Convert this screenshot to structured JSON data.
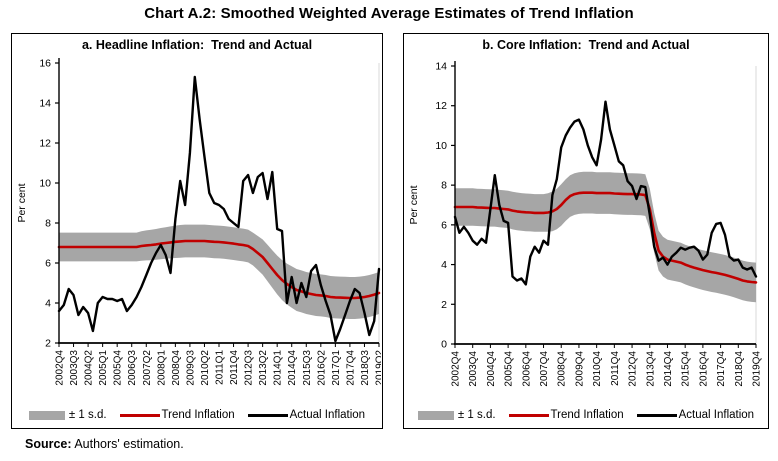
{
  "title": "Chart A.2: Smoothed Weighted Average Estimates of Trend Inflation",
  "source": {
    "label": "Source:",
    "text": " Authors' estimation."
  },
  "legend": {
    "band": "± 1 s.d.",
    "trend": "Trend Inflation",
    "actual": "Actual Inflation"
  },
  "colors": {
    "band": "#a6a6a6",
    "trend": "#c00000",
    "actual": "#000000",
    "plot_right_spine": "#d9d9d9",
    "axis": "#000000"
  },
  "chart_data": [
    {
      "type": "line",
      "title": "a. Headline Inflation:  Trend and Actual",
      "ylabel": "Per cent",
      "y_min": 2,
      "y_max": 16,
      "y_step": 2,
      "y_tick_labels": [
        "2",
        "4",
        "6",
        "8",
        "10",
        "12",
        "14",
        "16"
      ],
      "label_every": 3,
      "x_tick_labels": [
        "2002Q4",
        "2003Q3",
        "2004Q2",
        "2005Q1",
        "2005Q4",
        "2006Q3",
        "2007Q2",
        "2008Q1",
        "2008Q4",
        "2009Q3",
        "2010Q2",
        "2011Q1",
        "2011Q4",
        "2012Q3",
        "2013Q2",
        "2014Q1",
        "2014Q4",
        "2015Q3",
        "2016Q2",
        "2017Q1",
        "2017Q4",
        "2018Q3",
        "2019Q2"
      ],
      "series": [
        {
          "name": "± 1 s.d.",
          "kind": "band",
          "halfwidth": [
            0.72,
            0.72,
            0.72,
            0.72,
            0.72,
            0.72,
            0.72,
            0.72,
            0.72,
            0.72,
            0.72,
            0.72,
            0.72,
            0.72,
            0.72,
            0.72,
            0.72,
            0.74,
            0.75,
            0.76,
            0.77,
            0.78,
            0.79,
            0.8,
            0.81,
            0.82,
            0.82,
            0.82,
            0.82,
            0.82,
            0.82,
            0.82,
            0.82,
            0.82,
            0.82,
            0.82,
            0.82,
            0.82,
            0.82,
            0.82,
            0.82,
            0.85,
            0.88,
            0.91,
            0.94,
            0.97,
            1.0,
            1.02,
            1.04,
            1.05,
            1.05,
            1.05,
            1.05,
            1.05,
            1.05,
            1.05,
            1.05,
            1.05,
            1.05,
            1.05,
            1.05,
            1.05,
            1.05,
            1.05,
            1.05,
            1.05,
            1.05
          ]
        },
        {
          "name": "Trend Inflation",
          "kind": "line",
          "values": [
            6.8,
            6.8,
            6.8,
            6.8,
            6.8,
            6.8,
            6.8,
            6.8,
            6.8,
            6.8,
            6.8,
            6.8,
            6.8,
            6.8,
            6.8,
            6.8,
            6.8,
            6.85,
            6.88,
            6.9,
            6.93,
            6.97,
            7.0,
            7.03,
            7.06,
            7.08,
            7.1,
            7.1,
            7.1,
            7.1,
            7.1,
            7.08,
            7.06,
            7.05,
            7.03,
            7.0,
            6.97,
            6.93,
            6.9,
            6.85,
            6.7,
            6.5,
            6.3,
            6.0,
            5.7,
            5.4,
            5.15,
            4.95,
            4.8,
            4.65,
            4.58,
            4.5,
            4.45,
            4.4,
            4.38,
            4.35,
            4.3,
            4.28,
            4.27,
            4.26,
            4.25,
            4.25,
            4.27,
            4.3,
            4.35,
            4.42,
            4.5
          ]
        },
        {
          "name": "Actual Inflation",
          "kind": "line",
          "values": [
            3.6,
            3.9,
            4.7,
            4.4,
            3.4,
            3.8,
            3.5,
            2.6,
            4.0,
            4.3,
            4.2,
            4.2,
            4.1,
            4.2,
            3.6,
            3.9,
            4.3,
            4.8,
            5.4,
            6.0,
            6.5,
            6.9,
            6.4,
            5.5,
            8.2,
            10.1,
            8.9,
            11.5,
            15.3,
            13.2,
            11.3,
            9.5,
            9.0,
            8.9,
            8.7,
            8.2,
            8.0,
            7.8,
            10.1,
            10.4,
            9.5,
            10.3,
            10.5,
            9.2,
            10.55,
            7.7,
            7.6,
            4.0,
            5.3,
            4.0,
            5.0,
            4.3,
            5.6,
            5.9,
            4.9,
            4.1,
            3.4,
            2.1,
            2.7,
            3.4,
            4.1,
            4.7,
            4.5,
            3.5,
            2.4,
            3.1,
            5.7
          ]
        }
      ]
    },
    {
      "type": "line",
      "title": "b. Core Inflation:  Trend and Actual",
      "ylabel": "Per cent",
      "y_min": 0,
      "y_max": 14,
      "y_step": 2,
      "y_tick_labels": [
        "0",
        "2",
        "4",
        "6",
        "8",
        "10",
        "12",
        "14"
      ],
      "label_every": 4,
      "x_tick_labels": [
        "2002Q4",
        "2003Q4",
        "2004Q4",
        "2005Q4",
        "2006Q4",
        "2007Q4",
        "2008Q4",
        "2009Q4",
        "2010Q4",
        "2011Q4",
        "2012Q4",
        "2013Q4",
        "2014Q4",
        "2015Q4",
        "2016Q4",
        "2017Q4",
        "2018Q4",
        "2019Q4"
      ],
      "series": [
        {
          "name": "± 1 s.d.",
          "kind": "band",
          "halfwidth": [
            0.94,
            0.94,
            0.94,
            0.94,
            0.94,
            0.94,
            0.94,
            0.94,
            0.94,
            0.94,
            0.94,
            0.94,
            0.94,
            0.95,
            0.95,
            0.95,
            0.95,
            0.95,
            0.95,
            0.95,
            0.95,
            0.97,
            1.0,
            1.02,
            1.04,
            1.05,
            1.05,
            1.05,
            1.05,
            1.05,
            1.05,
            1.05,
            1.05,
            1.05,
            1.05,
            1.05,
            1.05,
            1.05,
            1.05,
            1.05,
            1.05,
            1.05,
            1.05,
            1.05,
            1.02,
            1.0,
            1.0,
            1.0,
            1.0,
            1.0,
            1.0,
            1.0,
            1.0,
            1.0,
            1.0,
            1.0,
            1.0,
            1.0,
            1.0,
            1.0,
            1.0,
            1.0,
            1.0,
            1.0,
            1.0,
            1.0,
            1.0,
            1.0,
            1.0
          ]
        },
        {
          "name": "Trend Inflation",
          "kind": "line",
          "values": [
            6.9,
            6.9,
            6.9,
            6.9,
            6.9,
            6.88,
            6.87,
            6.86,
            6.85,
            6.85,
            6.82,
            6.8,
            6.78,
            6.72,
            6.68,
            6.65,
            6.63,
            6.62,
            6.6,
            6.6,
            6.6,
            6.62,
            6.68,
            6.8,
            7.0,
            7.25,
            7.45,
            7.55,
            7.6,
            7.62,
            7.62,
            7.62,
            7.6,
            7.6,
            7.6,
            7.6,
            7.58,
            7.57,
            7.56,
            7.55,
            7.55,
            7.54,
            7.53,
            7.5,
            6.8,
            5.6,
            4.7,
            4.4,
            4.25,
            4.2,
            4.15,
            4.1,
            4.0,
            3.92,
            3.85,
            3.78,
            3.72,
            3.67,
            3.62,
            3.58,
            3.53,
            3.48,
            3.42,
            3.35,
            3.28,
            3.2,
            3.15,
            3.12,
            3.1
          ]
        },
        {
          "name": "Actual Inflation",
          "kind": "line",
          "values": [
            6.4,
            5.6,
            5.9,
            5.6,
            5.2,
            5.0,
            5.3,
            5.1,
            6.8,
            8.5,
            7.0,
            6.2,
            6.1,
            3.4,
            3.2,
            3.3,
            3.0,
            4.4,
            4.9,
            4.6,
            5.2,
            5.0,
            7.5,
            8.3,
            9.9,
            10.5,
            10.9,
            11.2,
            11.3,
            10.8,
            10.0,
            9.4,
            9.0,
            10.3,
            12.2,
            10.8,
            10.0,
            9.2,
            9.0,
            8.2,
            7.95,
            7.3,
            7.95,
            7.9,
            6.5,
            4.9,
            4.2,
            4.35,
            4.0,
            4.4,
            4.6,
            4.85,
            4.75,
            4.85,
            4.9,
            4.7,
            4.25,
            4.5,
            5.6,
            6.05,
            6.1,
            5.5,
            4.4,
            4.2,
            4.25,
            3.85,
            3.75,
            3.85,
            3.4
          ]
        }
      ]
    }
  ]
}
